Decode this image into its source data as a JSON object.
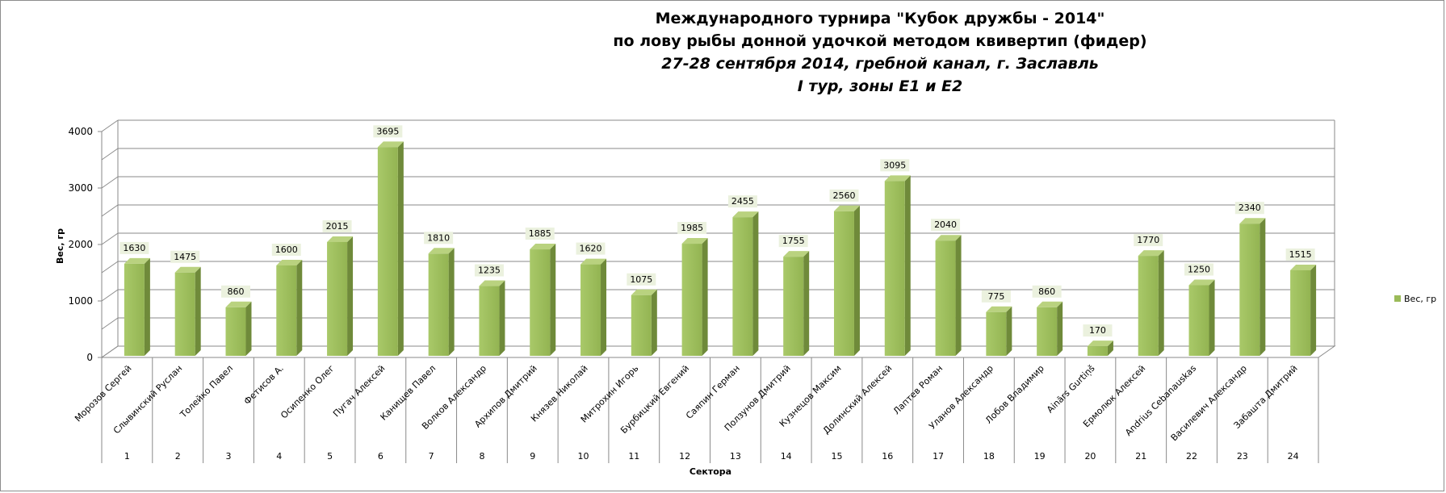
{
  "chart_data": {
    "type": "bar",
    "title_lines": [
      "Международного турнира \"Кубок дружбы - 2014\"",
      "по лову рыбы донной удочкой методом квивертип (фидер)",
      "27-28 сентября 2014, гребной канал, г. Заславль",
      "I тур, зоны Е1 и Е2"
    ],
    "xlabel": "Сектора",
    "ylabel": "Вес, гр",
    "ylim": [
      0,
      4000
    ],
    "yticks": [
      0,
      1000,
      2000,
      3000,
      4000
    ],
    "grid": true,
    "legend_position": "right",
    "bar_color": "#9bbb59",
    "categories": [
      {
        "name": "Морозов Сергей",
        "sector": "1"
      },
      {
        "name": "Слывинский Руслан",
        "sector": "2"
      },
      {
        "name": "Толейко Павел",
        "sector": "3"
      },
      {
        "name": "Фетисов А.",
        "sector": "4"
      },
      {
        "name": "Осипенко Олег",
        "sector": "5"
      },
      {
        "name": "Пугач Алексей",
        "sector": "6"
      },
      {
        "name": "Канищев Павел",
        "sector": "7"
      },
      {
        "name": "Волков Александр",
        "sector": "8"
      },
      {
        "name": "Архипов Дмитрий",
        "sector": "9"
      },
      {
        "name": "Князев Николай",
        "sector": "10"
      },
      {
        "name": "Митрохин Игорь",
        "sector": "11"
      },
      {
        "name": "Бурбицкий Евгений",
        "sector": "12"
      },
      {
        "name": "Саяпин Герман",
        "sector": "13"
      },
      {
        "name": "Ползунов Дмитрий",
        "sector": "14"
      },
      {
        "name": "Кузнецов Максим",
        "sector": "15"
      },
      {
        "name": "Долинский Алексей",
        "sector": "16"
      },
      {
        "name": "Лаптев Роман",
        "sector": "17"
      },
      {
        "name": "Уланов Александр",
        "sector": "18"
      },
      {
        "name": "Лобов Владимир",
        "sector": "19"
      },
      {
        "name": "Ainārs Gurtiņš",
        "sector": "20"
      },
      {
        "name": "Ермолюк Алексей",
        "sector": "21"
      },
      {
        "name": "Andrius Cebanauskas",
        "sector": "22"
      },
      {
        "name": "Василевич Александр",
        "sector": "23"
      },
      {
        "name": "Забашта Дмитрий",
        "sector": "24"
      }
    ],
    "series": [
      {
        "name": "Вес, гр",
        "values": [
          1630,
          1475,
          860,
          1600,
          2015,
          3695,
          1810,
          1235,
          1885,
          1620,
          1075,
          1985,
          2455,
          1755,
          2560,
          3095,
          2040,
          775,
          860,
          170,
          1770,
          1250,
          2340,
          1515
        ]
      }
    ]
  }
}
